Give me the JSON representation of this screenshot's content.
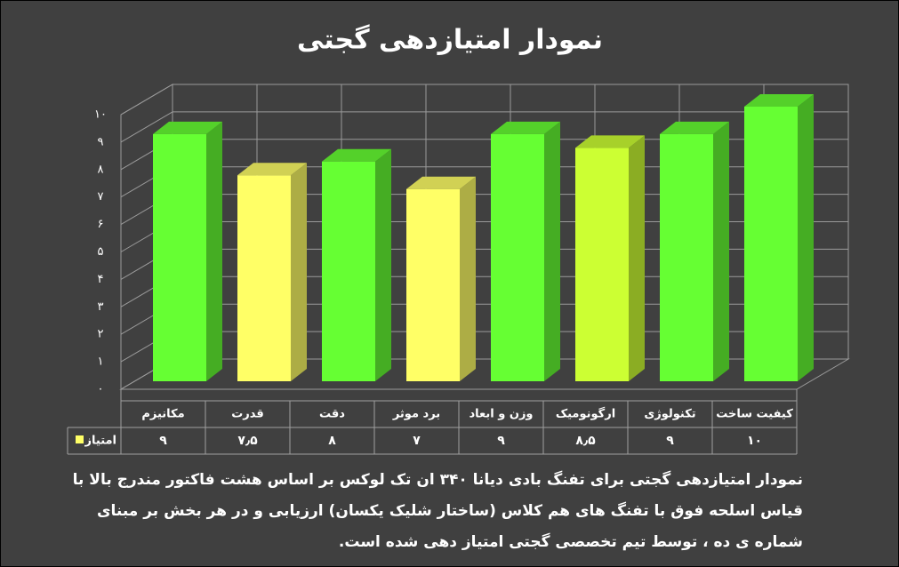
{
  "chart_data": {
    "type": "bar3d",
    "title": "نمودار امتیازدهی گجتی",
    "categories": [
      "مکانیزم",
      "قدرت",
      "دقت",
      "برد موثر",
      "وزن و ابعاد",
      "ارگونومیک",
      "تکنولوژی",
      "کیفیت ساخت"
    ],
    "series": [
      {
        "name": "امتیاز",
        "color": "#ffff66",
        "colors": [
          "#66ff33",
          "#ffff66",
          "#66ff33",
          "#ffff66",
          "#66ff33",
          "#ccff33",
          "#66ff33",
          "#66ff33"
        ],
        "values": [
          9,
          7.5,
          8,
          7,
          9,
          8.5,
          9,
          10
        ],
        "value_labels": [
          "۹",
          "۷٫۵",
          "۸",
          "۷",
          "۹",
          "۸٫۵",
          "۹",
          "۱۰"
        ]
      }
    ],
    "ylim": [
      0,
      10
    ],
    "yticks": [
      {
        "value": 0,
        "label": "۰"
      },
      {
        "value": 1,
        "label": "۱"
      },
      {
        "value": 2,
        "label": "۲"
      },
      {
        "value": 3,
        "label": "۳"
      },
      {
        "value": 4,
        "label": "۴"
      },
      {
        "value": 5,
        "label": "۵"
      },
      {
        "value": 6,
        "label": "۶"
      },
      {
        "value": 7,
        "label": "۷"
      },
      {
        "value": 8,
        "label": "۸"
      },
      {
        "value": 9,
        "label": "۹"
      },
      {
        "value": 10,
        "label": "۱۰"
      }
    ],
    "grid": true,
    "caption": "نمودار امتیازدهی گجتی برای تفنگ بادی دیانا ۳۴۰ ان تک لوکس بر اساس هشت فاکتور مندرج بالا با قیاس اسلحه فوق با تفنگ های هم کلاس (ساختار شلیک یکسان) ارزیابی و در هر بخش بر مبنای شماره ی ده ، توسط تیم تخصصی گجتی امتیاز دهی شده است."
  }
}
